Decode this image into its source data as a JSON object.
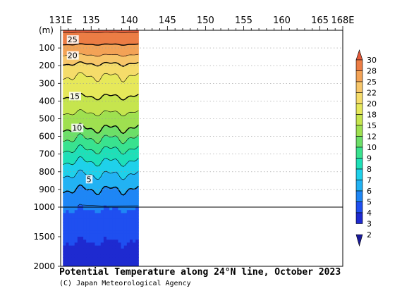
{
  "chart_data": {
    "type": "heatmap",
    "title": "Potential Temperature along 24°N line, October 2023",
    "credit": "(C) Japan Meteorological Agency",
    "x_ticks": [
      "131E",
      "135",
      "140",
      "145",
      "150",
      "155",
      "160",
      "165",
      "168E"
    ],
    "x_tick_values": [
      131,
      135,
      140,
      145,
      150,
      155,
      160,
      165,
      168
    ],
    "x_range": [
      131,
      168
    ],
    "data_extent_x": [
      131.3,
      141.2
    ],
    "y_unit": "(m)",
    "y_ticks_upper": [
      "100",
      "200",
      "300",
      "400",
      "500",
      "600",
      "700",
      "800",
      "900",
      "1000"
    ],
    "y_ticks_lower": [
      "1500",
      "2000"
    ],
    "y_range_upper": [
      0,
      1000
    ],
    "y_range_lower": [
      1000,
      2000
    ],
    "colorbar_levels": [
      "2",
      "3",
      "4",
      "5",
      "6",
      "7",
      "8",
      "9",
      "10",
      "12",
      "15",
      "18",
      "20",
      "22",
      "25",
      "28",
      "30"
    ],
    "colorbar_colors": [
      "#1a1a9a",
      "#1e2ad0",
      "#1f4ff0",
      "#1e86f5",
      "#22b2f3",
      "#1fd1ea",
      "#1ee0b8",
      "#39e28f",
      "#6ddf68",
      "#9fe050",
      "#c6e54e",
      "#e6e85a",
      "#f5dc6a",
      "#f7c66a",
      "#f3a356",
      "#ec7d45",
      "#e55a3a"
    ],
    "contour_labels": [
      {
        "text": "25",
        "lon": 131.9,
        "depth": 60
      },
      {
        "text": "20",
        "lon": 131.9,
        "depth": 150
      },
      {
        "text": "15",
        "lon": 132.2,
        "depth": 380
      },
      {
        "text": "10",
        "lon": 132.5,
        "depth": 560
      },
      {
        "text": "5",
        "lon": 134.4,
        "depth": 850
      }
    ],
    "profile_depths": [
      0,
      50,
      100,
      150,
      200,
      250,
      300,
      350,
      400,
      450,
      500,
      600,
      700,
      800,
      900,
      1000,
      1500,
      2000
    ],
    "profile_temps": [
      28.5,
      26.5,
      24.0,
      21.5,
      19.6,
      18.2,
      17.2,
      15.8,
      14.2,
      12.5,
      11.0,
      9.2,
      7.6,
      6.2,
      5.0,
      4.1,
      3.1,
      2.5
    ]
  }
}
